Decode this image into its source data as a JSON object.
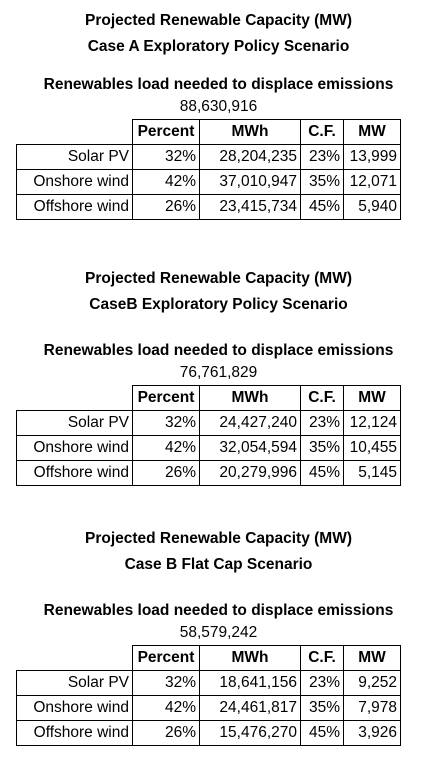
{
  "subheading": "Renewables load needed to displace emissions",
  "headers": [
    "",
    "Percent",
    "MWh",
    "C.F.",
    "MW"
  ],
  "scenarios": [
    {
      "title_line1": "Projected Renewable Capacity (MW)",
      "title_line2": "Case A Exploratory Policy Scenario",
      "total": "88,630,916",
      "rows": [
        {
          "source": "Solar PV",
          "percent": "32%",
          "mwh": "28,204,235",
          "cf": "23%",
          "mw": "13,999"
        },
        {
          "source": "Onshore wind",
          "percent": "42%",
          "mwh": "37,010,947",
          "cf": "35%",
          "mw": "12,071"
        },
        {
          "source": "Offshore wind",
          "percent": "26%",
          "mwh": "23,415,734",
          "cf": "45%",
          "mw": "5,940"
        }
      ]
    },
    {
      "title_line1": "Projected Renewable Capacity (MW)",
      "title_line2": "CaseB Exploratory Policy Scenario",
      "total": "76,761,829",
      "rows": [
        {
          "source": "Solar PV",
          "percent": "32%",
          "mwh": "24,427,240",
          "cf": "23%",
          "mw": "12,124"
        },
        {
          "source": "Onshore wind",
          "percent": "42%",
          "mwh": "32,054,594",
          "cf": "35%",
          "mw": "10,455"
        },
        {
          "source": "Offshore wind",
          "percent": "26%",
          "mwh": "20,279,996",
          "cf": "45%",
          "mw": "5,145"
        }
      ]
    },
    {
      "title_line1": "Projected Renewable Capacity (MW)",
      "title_line2": "Case B Flat Cap Scenario",
      "total": "58,579,242",
      "rows": [
        {
          "source": "Solar PV",
          "percent": "32%",
          "mwh": "18,641,156",
          "cf": "23%",
          "mw": "9,252"
        },
        {
          "source": "Onshore wind",
          "percent": "42%",
          "mwh": "24,461,817",
          "cf": "35%",
          "mw": "7,978"
        },
        {
          "source": "Offshore wind",
          "percent": "26%",
          "mwh": "15,476,270",
          "cf": "45%",
          "mw": "3,926"
        }
      ]
    }
  ]
}
